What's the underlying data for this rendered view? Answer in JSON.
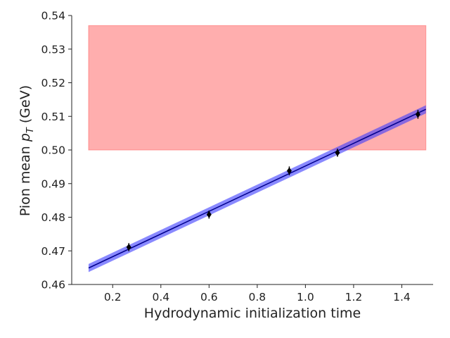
{
  "chart_data": {
    "type": "scatter",
    "title": "",
    "xlabel": "Hydrodynamic initialization time",
    "ylabel_prefix": "Pion mean ",
    "ylabel_symbol": "p",
    "ylabel_subscript": "T",
    "ylabel_suffix": " (GeV)",
    "xlim": [
      0.03,
      1.53
    ],
    "ylim": [
      0.46,
      0.54
    ],
    "xticks": [
      0.2,
      0.4,
      0.6,
      0.8,
      1.0,
      1.2,
      1.4
    ],
    "xtick_labels": [
      "0.2",
      "0.4",
      "0.6",
      "0.8",
      "1.0",
      "1.2",
      "1.4"
    ],
    "yticks": [
      0.46,
      0.47,
      0.48,
      0.49,
      0.5,
      0.51,
      0.52,
      0.53,
      0.54
    ],
    "ytick_labels": [
      "0.46",
      "0.47",
      "0.48",
      "0.49",
      "0.50",
      "0.51",
      "0.52",
      "0.53",
      "0.54"
    ],
    "grid": false,
    "series": [
      {
        "kind": "points_with_errors",
        "color": "#000000",
        "x": [
          0.267,
          0.6,
          0.933,
          1.133,
          1.467
        ],
        "y": [
          0.4711,
          0.4808,
          0.4938,
          0.4992,
          0.5106
        ],
        "yerr": [
          0.0012,
          0.0012,
          0.0013,
          0.0012,
          0.0013
        ]
      },
      {
        "kind": "fit_line",
        "color": "#00008b",
        "band_color": "#3a3aff",
        "x": [
          0.1,
          1.5
        ],
        "y": [
          0.4649,
          0.5121
        ],
        "band_halfwidth": 0.0012
      }
    ],
    "region": {
      "color": "#ff6b6b",
      "x": [
        0.1,
        1.5
      ],
      "y": [
        0.5,
        0.537
      ]
    }
  }
}
